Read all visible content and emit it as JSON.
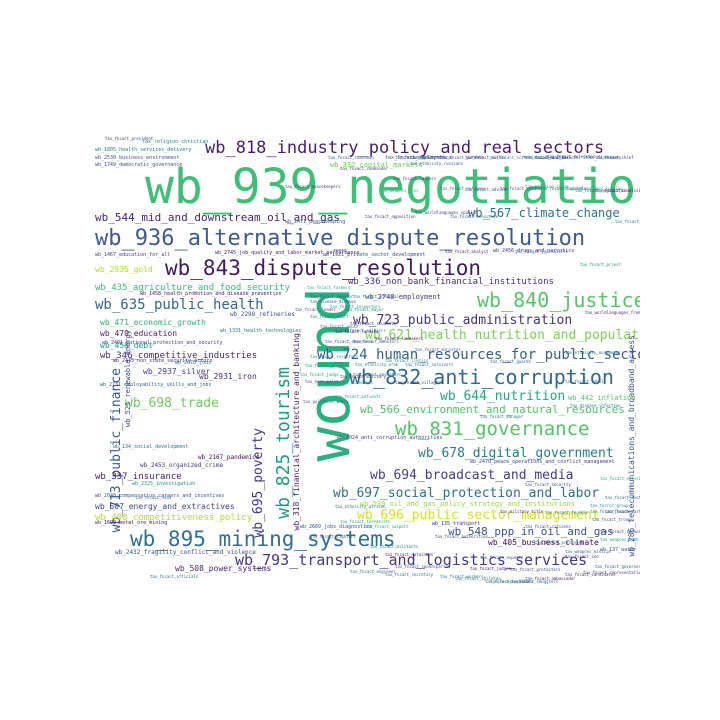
{
  "words": [
    {
      "text": "wb_939_negotiation",
      "color": "#3dbf77"
    },
    {
      "text": "wound",
      "color": "#2ab07f"
    },
    {
      "text": "wb_936_alternative_dispute_resolution",
      "color": "#3e5b8c"
    },
    {
      "text": "wb_843_dispute_resolution",
      "color": "#42185f"
    },
    {
      "text": "wb_818_industry_policy_and_real_sectors",
      "color": "#4a1c6f"
    },
    {
      "text": "wb_895_mining_systems",
      "color": "#2f6f8f"
    },
    {
      "text": "wb_832_anti_corruption",
      "color": "#2e6b8e"
    },
    {
      "text": "wb_840_justice",
      "color": "#55c667"
    },
    {
      "text": "wb_831_governance",
      "color": "#53c468"
    },
    {
      "text": "wb_825_tourism",
      "color": "#1f9a8a"
    },
    {
      "text": "wb_793_transport_and_logistics_services",
      "color": "#453781"
    },
    {
      "text": "wb_724_human_resources_for_public_sector",
      "color": "#35608d"
    },
    {
      "text": "wb_713_public_finance",
      "color": "#39568c"
    },
    {
      "text": "wb_695_poverty",
      "color": "#453882"
    },
    {
      "text": "wb_697_social_protection_and_labor",
      "color": "#2c728e"
    },
    {
      "text": "wb_694_broadcast_and_media",
      "color": "#433e85"
    },
    {
      "text": "wb_696_public_sector_management",
      "color": "#d5e21a"
    },
    {
      "text": "wb_678_digital_government",
      "color": "#287c8e"
    },
    {
      "text": "wb_566_environment_and_natural_resources",
      "color": "#4cc26c"
    },
    {
      "text": "wb_644_nutrition",
      "color": "#22a785"
    },
    {
      "text": "wb_621_health_nutrition_and_population",
      "color": "#7ad151"
    },
    {
      "text": "wb_723_public_administration",
      "color": "#46327e"
    },
    {
      "text": "wb_635_public_health",
      "color": "#31688e"
    },
    {
      "text": "wb_567_climate_change",
      "color": "#2d718e"
    },
    {
      "text": "wb_544_mid_and_downstream_oil_and_gas",
      "color": "#481f70"
    },
    {
      "text": "wb_698_trade",
      "color": "#6cce59"
    },
    {
      "text": "wb_548_ppp_in_oil_and_gas",
      "color": "#3b528b"
    },
    {
      "text": "wb_435_agriculture_and_food_security",
      "color": "#3aba76"
    },
    {
      "text": "wb_346_competitive_industries",
      "color": "#482677"
    },
    {
      "text": "wb_318_financial_architecture_and_banking",
      "color": "#481c6e"
    },
    {
      "text": "wb_286_telecommunications_and_broadband_access",
      "color": "#3b528b"
    },
    {
      "text": "wb_336_non_bank_financial_institutions",
      "color": "#472d7b"
    },
    {
      "text": "wb_408_competitiveness_policy",
      "color": "#b5de2b"
    },
    {
      "text": "wb_337_insurance",
      "color": "#481a6c"
    },
    {
      "text": "wb_507_energy_and_extractives",
      "color": "#3f4889"
    },
    {
      "text": "wb_405_business_climate",
      "color": "#440154"
    },
    {
      "text": "wb_471_economic_growth",
      "color": "#29af7f"
    },
    {
      "text": "wb_470_education",
      "color": "#482173"
    },
    {
      "text": "wb_450_debt",
      "color": "#1e9c89"
    },
    {
      "text": "wb_2937_silver",
      "color": "#414487"
    },
    {
      "text": "wb_2931_iron",
      "color": "#472c7a"
    },
    {
      "text": "wb_508_power_systems",
      "color": "#482576"
    },
    {
      "text": "wb_525_renewable_energy",
      "color": "#3e4a89"
    },
    {
      "text": "wb_2936_gold",
      "color": "#addc30"
    },
    {
      "text": "wb_539_oil_and_gas_policy_strategy_and_institutions",
      "color": "#a0da39"
    },
    {
      "text": "wb_2748_employment",
      "color": "#424086"
    },
    {
      "text": "wb_442_inflation",
      "color": "#52c569"
    },
    {
      "text": "wb_1458_health_promotion_and_disease_prevention",
      "color": "#481769"
    },
    {
      "text": "wb_2298_refineries",
      "color": "#3c4f8a"
    },
    {
      "text": "wb_2453_organized_crime",
      "color": "#46307e"
    },
    {
      "text": "wb_2167_pandemics",
      "color": "#440154"
    },
    {
      "text": "wb_2432_fragility_conflict_and_violence",
      "color": "#3e4c8a"
    },
    {
      "text": "wb_2745_job_quality_and_labor_market_performance",
      "color": "#482173"
    },
    {
      "text": "wb_1921_private_sector_development",
      "color": "#3d4d8a"
    },
    {
      "text": "wb_1467_education_for_all",
      "color": "#433d84"
    },
    {
      "text": "wb_2456_drugs_and_narcotics",
      "color": "#472f7d"
    },
    {
      "text": "wb_2471_peacekeeping",
      "color": "#365d8d"
    },
    {
      "text": "wb_332_capital_markets",
      "color": "#6ccd5a"
    },
    {
      "text": "wb_2731_employability_skills_and_jobs",
      "color": "#355f8d"
    },
    {
      "text": "wb_2024_anti_corruption_authorities",
      "color": "#3f4788"
    },
    {
      "text": "wb_2470_peace_operations_and_conflict_management",
      "color": "#433e85"
    },
    {
      "text": "wb_134_social_development",
      "color": "#2a788e"
    },
    {
      "text": "wb_1699_metal_ore_mining",
      "color": "#482475"
    },
    {
      "text": "wb_2048_compensation_careers_and_incentives",
      "color": "#38598c"
    },
    {
      "text": "wb_1805_health_services_delivery",
      "color": "#287d8e"
    },
    {
      "text": "wb_2530_business_environment",
      "color": "#3b528b"
    },
    {
      "text": "tax_fncact_president",
      "color": "#404588"
    },
    {
      "text": "tax_fncact_employees",
      "color": "#3a548c"
    },
    {
      "text": "tax_diseases",
      "color": "#2d708e"
    },
    {
      "text": "tax_religion_christian",
      "color": "#23898e"
    },
    {
      "text": "wb_1749_democratic_governance",
      "color": "#3b528b"
    },
    {
      "text": "wb_2491_national_protection_and_security",
      "color": "#414487"
    },
    {
      "text": "wb_1331_health_technologies",
      "color": "#2a788e"
    },
    {
      "text": "wb_2670_jobs",
      "color": "#2a788e"
    },
    {
      "text": "wb_2445_non_state_security_actors",
      "color": "#482878"
    },
    {
      "text": "wb_2325_investigation",
      "color": "#20928c"
    },
    {
      "text": "wb_135_transport",
      "color": "#46337f"
    },
    {
      "text": "wb_2689_jobs_diagnostics",
      "color": "#3d4e8a"
    },
    {
      "text": "wb_137_water",
      "color": "#3a548c"
    },
    {
      "text": "tax_fncact_officials",
      "color": "#2f6c8e"
    },
    {
      "text": "tax_fncact_police",
      "color": "#2d708e"
    },
    {
      "text": "tax_fncact_prime",
      "color": "#1f948c"
    },
    {
      "text": "tax_fncact_leader",
      "color": "#38598c"
    },
    {
      "text": "tax_fncact_minister",
      "color": "#355f8d"
    },
    {
      "text": "tax_worldlanguages_french",
      "color": "#481f70"
    },
    {
      "text": "tax_fncact_students",
      "color": "#453882"
    },
    {
      "text": "tax_fncact_soldiers",
      "color": "#27808e"
    },
    {
      "text": "tax_fncact_authorities",
      "color": "#3e4a89"
    },
    {
      "text": "tax_weapons_guns",
      "color": "#35b779"
    },
    {
      "text": "tax_political_party",
      "color": "#31688e"
    },
    {
      "text": "tax_terror_group",
      "color": "#21918c"
    },
    {
      "text": "tax_fncact_troops",
      "color": "#3b528b"
    },
    {
      "text": "tax_disease_infection",
      "color": "#2c728e"
    },
    {
      "text": "tax_fncact_doctors",
      "color": "#2e6e8e"
    },
    {
      "text": "tax_fncact_author",
      "color": "#46307e"
    },
    {
      "text": "tax_worldlanguages_spanish",
      "color": "#433e85"
    },
    {
      "text": "tax_fncact_lawyers",
      "color": "#3f4788"
    },
    {
      "text": "tax_fncact_women",
      "color": "#25848e"
    },
    {
      "text": "tax_ethnicity_african",
      "color": "#2b758e"
    },
    {
      "text": "tax_fncact_security",
      "color": "#3c4f8a"
    },
    {
      "text": "tax_fncact_judge",
      "color": "#20a386"
    },
    {
      "text": "tax_fncact_mayor",
      "color": "#26828e"
    },
    {
      "text": "tax_fncact_governor",
      "color": "#3b528b"
    },
    {
      "text": "tax_fncact_child",
      "color": "#297b8e"
    },
    {
      "text": "tax_worldlanguages_russian",
      "color": "#28ae80"
    },
    {
      "text": "tax_fncact_manager",
      "color": "#2e6e8e"
    },
    {
      "text": "tax_fncact_spokesman",
      "color": "#404688"
    },
    {
      "text": "tax_fncact_chairman",
      "color": "#38598c"
    },
    {
      "text": "tax_fncact_director",
      "color": "#3e4989"
    },
    {
      "text": "tax_military_title",
      "color": "#482979"
    },
    {
      "text": "tax_fncact_ceo",
      "color": "#433e85"
    },
    {
      "text": "tax_fncact_activist",
      "color": "#25ac82"
    },
    {
      "text": "tax_fncact_rebels",
      "color": "#30678d"
    },
    {
      "text": "tax_fncact_victims",
      "color": "#3b528b"
    },
    {
      "text": "tax_econ_price",
      "color": "#3c508b"
    },
    {
      "text": "tax_fncact_head",
      "color": "#2b748e"
    },
    {
      "text": "tax_weapons_bomb",
      "color": "#1e9b8a"
    },
    {
      "text": "tax_ethnicity_russians",
      "color": "#34618d"
    },
    {
      "text": "tax_fncact_judges",
      "color": "#471365"
    },
    {
      "text": "tax_fncact_chief",
      "color": "#46337f"
    },
    {
      "text": "tax_disease_disease",
      "color": "#3d4d8a"
    },
    {
      "text": "tax_fncact_experts",
      "color": "#3a548c"
    },
    {
      "text": "tax_fncact_engineer",
      "color": "#2d708e"
    },
    {
      "text": "tax_fncact_farmers",
      "color": "#27ad81"
    },
    {
      "text": "tax_fncact_workers",
      "color": "#2c738e"
    },
    {
      "text": "tax_fncact_protesters",
      "color": "#3f4889"
    },
    {
      "text": "tax_fncact_parents",
      "color": "#39568c"
    },
    {
      "text": "tax_fncact_refugees",
      "color": "#30698e"
    },
    {
      "text": "tax_fncact_economist",
      "color": "#23888e"
    },
    {
      "text": "tax_fncact_military",
      "color": "#472c7a"
    },
    {
      "text": "tax_fncact_senator",
      "color": "#38588c"
    },
    {
      "text": "tax_fncact_official",
      "color": "#2d718e"
    },
    {
      "text": "tax_ethnicity_arab",
      "color": "#24868e"
    },
    {
      "text": "tax_fncact_commander",
      "color": "#3f4889"
    },
    {
      "text": "tax_fncact_journalists",
      "color": "#31678e"
    },
    {
      "text": "tax_fncact_analyst",
      "color": "#482173"
    },
    {
      "text": "tax_fncact_investors",
      "color": "#20938c"
    },
    {
      "text": "tax_weapons_missile",
      "color": "#2f6b8e"
    },
    {
      "text": "tax_religion_islam",
      "color": "#1fa088"
    },
    {
      "text": "tax_fncact_negotiator",
      "color": "#3d4e8a"
    },
    {
      "text": "tax_ethnicity_europeans",
      "color": "#2a768e"
    },
    {
      "text": "tax_fncact_candidates",
      "color": "#443983"
    },
    {
      "text": "tax_fncact_militants",
      "color": "#26828e"
    },
    {
      "text": "tax_fncact_guards",
      "color": "#33638d"
    },
    {
      "text": "tax_econ_tax",
      "color": "#2c728e"
    },
    {
      "text": "tax_fncact_citizens",
      "color": "#3b518b"
    },
    {
      "text": "tax_fncact_prisoners",
      "color": "#2a788e"
    },
    {
      "text": "tax_fncact_ambassador",
      "color": "#482576"
    },
    {
      "text": "tax_fncact_scientists",
      "color": "#24878e"
    },
    {
      "text": "tax_fncact_officer",
      "color": "#3e4a89"
    },
    {
      "text": "tax_fncact_executive",
      "color": "#35608d"
    },
    {
      "text": "tax_fncact_priest",
      "color": "#21918c"
    },
    {
      "text": "tax_fncact_peacekeepers",
      "color": "#443b84"
    },
    {
      "text": "tax_fncact_advisor",
      "color": "#3c4f8a"
    },
    {
      "text": "tax_fncact_staff",
      "color": "#2b758e"
    },
    {
      "text": "tax_fncact_patients",
      "color": "#22a884"
    },
    {
      "text": "tax_fncact_voters",
      "color": "#39568c"
    },
    {
      "text": "tax_fncact_migrants",
      "color": "#2f6c8e"
    },
    {
      "text": "tax_fncact_commissioner",
      "color": "#481b6d"
    },
    {
      "text": "tax_fncact_spokesperson",
      "color": "#3a538b"
    },
    {
      "text": "tax_fncact_secretary",
      "color": "#2c718e"
    },
    {
      "text": "tax_fncact_representative",
      "color": "#3e4989"
    },
    {
      "text": "tax_fncact_founder",
      "color": "#2e6f8e"
    },
    {
      "text": "tax_fncact_teacher",
      "color": "#25858e"
    },
    {
      "text": "tax_fncact_partners",
      "color": "#3f4788"
    },
    {
      "text": "tax_fncact_opposition",
      "color": "#463480"
    },
    {
      "text": "tax_fncact_terrorists",
      "color": "#21a685"
    },
    {
      "text": "tax_fncact_fighters",
      "color": "#33638d"
    },
    {
      "text": "tax_fncact_detainees",
      "color": "#472a7a"
    },
    {
      "text": "tax_fncact_children",
      "color": "#2b748e"
    },
    {
      "text": "tax_fncact_residents",
      "color": "#3a548c"
    },
    {
      "text": "tax_fncact_inspectors",
      "color": "#1f9f88"
    },
    {
      "text": "tax_fncact_monitors",
      "color": "#31678e"
    },
    {
      "text": "tax_fncact_lawmakers",
      "color": "#482071"
    },
    {
      "text": "tax_fncact_observers",
      "color": "#3d4e8a"
    },
    {
      "text": "tax_fncact_mediators",
      "color": "#2a788e"
    },
    {
      "text": "tax_fncact_clerics",
      "color": "#24878e"
    },
    {
      "text": "tax_fncact_villagers",
      "color": "#443a83"
    },
    {
      "text": "tax_fncact_survivors",
      "color": "#2c728e"
    },
    {
      "text": "tax_fncact_delegates",
      "color": "#3b528b"
    },
    {
      "text": "tax_fncact_suspect",
      "color": "#20a386"
    },
    {
      "text": "tax_fncact_youth",
      "color": "#30698e"
    },
    {
      "text": "tax_fncact_lenders",
      "color": "#481467"
    },
    {
      "text": "tax_fncact_smugglers",
      "color": "#2e6e8e"
    },
    {
      "text": "tax_fncact_bankers",
      "color": "#38598c"
    },
    {
      "text": "tax_fncact_traders",
      "color": "#26828e"
    }
  ]
}
